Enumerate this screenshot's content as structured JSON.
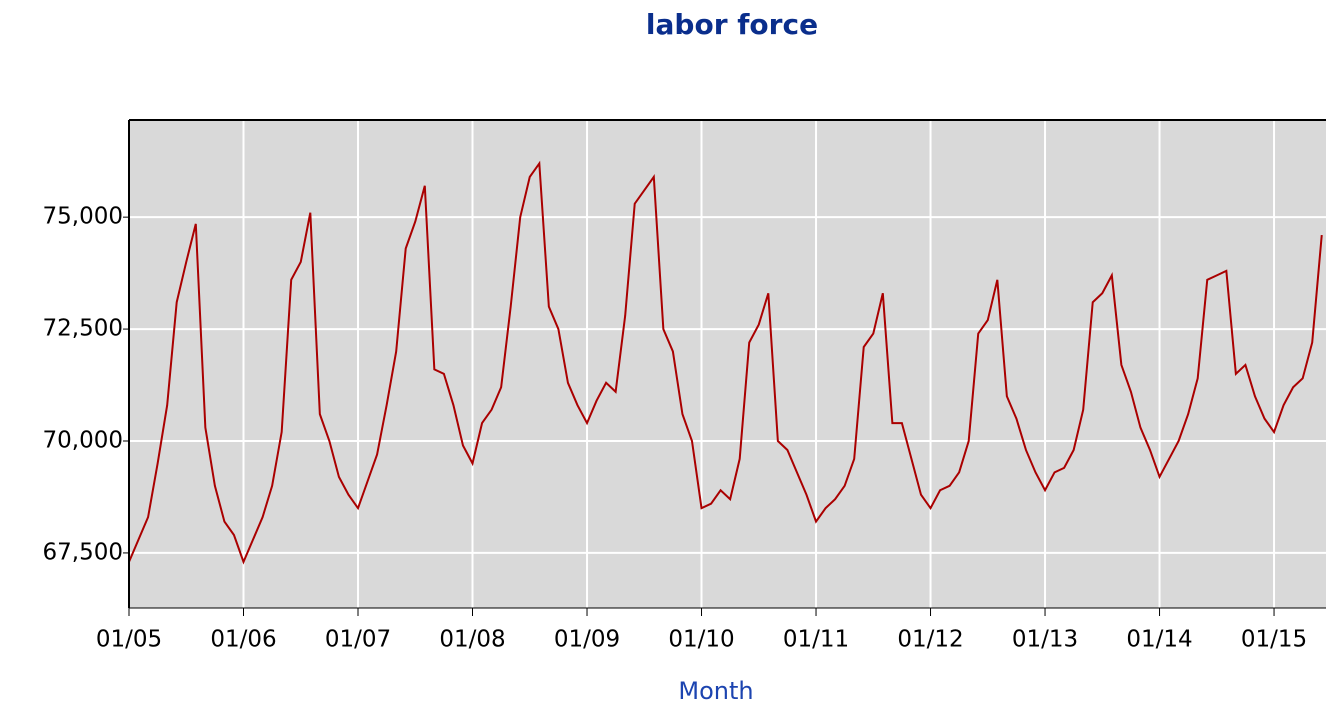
{
  "chart_data": {
    "type": "line",
    "title": "labor force",
    "x_label": "Month",
    "categories": [
      "01/05",
      null,
      null,
      null,
      null,
      null,
      null,
      null,
      null,
      null,
      null,
      null,
      "01/06",
      null,
      null,
      null,
      null,
      null,
      null,
      null,
      null,
      null,
      null,
      null,
      "01/07",
      null,
      null,
      null,
      null,
      null,
      null,
      null,
      null,
      null,
      null,
      null,
      "01/08",
      null,
      null,
      null,
      null,
      null,
      null,
      null,
      null,
      null,
      null,
      null,
      "01/09",
      null,
      null,
      null,
      null,
      null,
      null,
      null,
      null,
      null,
      null,
      null,
      "01/10",
      null,
      null,
      null,
      null,
      null,
      null,
      null,
      null,
      null,
      null,
      null,
      "01/11",
      null,
      null,
      null,
      null,
      null,
      null,
      null,
      null,
      null,
      null,
      null,
      "01/12",
      null,
      null,
      null,
      null,
      null,
      null,
      null,
      null,
      null,
      null,
      null,
      "01/13",
      null,
      null,
      null,
      null,
      null,
      null,
      null,
      null,
      null,
      null,
      null,
      "01/14",
      null,
      null,
      null,
      null,
      null,
      null,
      null,
      null,
      null,
      null,
      null,
      "01/15",
      null,
      null,
      null,
      null,
      null
    ],
    "series": [
      {
        "name": "labor force",
        "color": "#aa0000",
        "values": [
          67300,
          67800,
          68300,
          69500,
          70800,
          73100,
          74000,
          74850,
          70300,
          69000,
          68200,
          67900,
          67300,
          67800,
          68300,
          69000,
          70200,
          73600,
          74000,
          75100,
          70600,
          70000,
          69200,
          68800,
          68500,
          69100,
          69700,
          70800,
          72000,
          74300,
          74900,
          75700,
          71600,
          71500,
          70800,
          69900,
          69500,
          70400,
          70700,
          71200,
          73000,
          75000,
          75900,
          76200,
          73000,
          72500,
          71300,
          70800,
          70400,
          70900,
          71300,
          71100,
          72800,
          75300,
          75600,
          75900,
          72500,
          72000,
          70600,
          70000,
          68500,
          68600,
          68900,
          68700,
          69600,
          72200,
          72600,
          73300,
          70000,
          69800,
          69300,
          68800,
          68200,
          68500,
          68700,
          69000,
          69600,
          72100,
          72400,
          73300,
          70400,
          70400,
          69600,
          68800,
          68500,
          68900,
          69000,
          69300,
          70000,
          72400,
          72700,
          73600,
          71000,
          70500,
          69800,
          69300,
          68900,
          69300,
          69400,
          69800,
          70700,
          73100,
          73300,
          73700,
          71700,
          71100,
          70300,
          69800,
          69200,
          69600,
          70000,
          70600,
          71400,
          73600,
          73700,
          73800,
          71500,
          71700,
          71000,
          70500,
          70200,
          70800,
          71200,
          71400,
          72200,
          74600
        ]
      }
    ],
    "ylim": [
      66270,
      77170
    ],
    "yticks": [
      {
        "value": 67500,
        "label": "67,500"
      },
      {
        "value": 70000,
        "label": "70,000"
      },
      {
        "value": 72500,
        "label": "72,500"
      },
      {
        "value": 75000,
        "label": "75,000"
      }
    ],
    "grid": true
  }
}
